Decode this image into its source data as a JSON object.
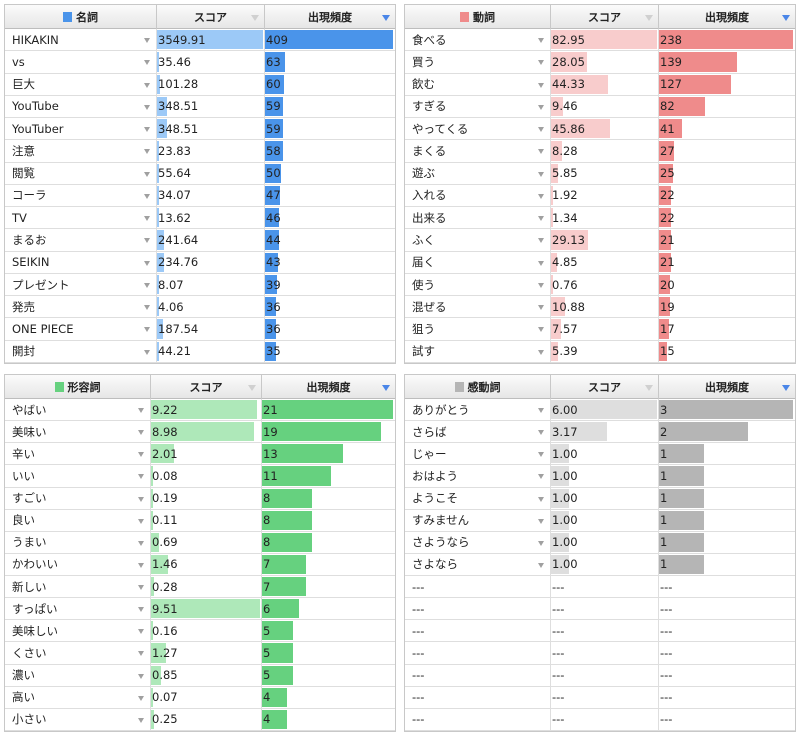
{
  "panels": [
    {
      "id": "noun",
      "title": "名詞",
      "color": "#4a94ea",
      "light": "#9cc9f7",
      "score_label": "スコア",
      "freq_label": "出現頻度",
      "max_score": 3549.91,
      "max_freq": 409,
      "rows": [
        {
          "word": "HIKAKIN",
          "score": "3549.91",
          "freq": "409"
        },
        {
          "word": "vs",
          "score": "35.46",
          "freq": "63"
        },
        {
          "word": "巨大",
          "score": "101.28",
          "freq": "60"
        },
        {
          "word": "YouTube",
          "score": "348.51",
          "freq": "59"
        },
        {
          "word": "YouTuber",
          "score": "348.51",
          "freq": "59"
        },
        {
          "word": "注意",
          "score": "23.83",
          "freq": "58"
        },
        {
          "word": "閲覧",
          "score": "55.64",
          "freq": "50"
        },
        {
          "word": "コーラ",
          "score": "34.07",
          "freq": "47"
        },
        {
          "word": "TV",
          "score": "13.62",
          "freq": "46"
        },
        {
          "word": "まるお",
          "score": "241.64",
          "freq": "44"
        },
        {
          "word": "SEIKIN",
          "score": "234.76",
          "freq": "43"
        },
        {
          "word": "プレゼント",
          "score": "8.07",
          "freq": "39"
        },
        {
          "word": "発売",
          "score": "4.06",
          "freq": "36"
        },
        {
          "word": "ONE PIECE",
          "score": "187.54",
          "freq": "36"
        },
        {
          "word": "開封",
          "score": "44.21",
          "freq": "35"
        }
      ]
    },
    {
      "id": "verb",
      "title": "動詞",
      "color": "#ef8b8b",
      "light": "#f8cccc",
      "score_label": "スコア",
      "freq_label": "出現頻度",
      "max_score": 82.95,
      "max_freq": 238,
      "rows": [
        {
          "word": "食べる",
          "score": "82.95",
          "freq": "238"
        },
        {
          "word": "買う",
          "score": "28.05",
          "freq": "139"
        },
        {
          "word": "飲む",
          "score": "44.33",
          "freq": "127"
        },
        {
          "word": "すぎる",
          "score": "9.46",
          "freq": "82"
        },
        {
          "word": "やってくる",
          "score": "45.86",
          "freq": "41"
        },
        {
          "word": "まくる",
          "score": "8.28",
          "freq": "27"
        },
        {
          "word": "遊ぶ",
          "score": "5.85",
          "freq": "25"
        },
        {
          "word": "入れる",
          "score": "1.92",
          "freq": "22"
        },
        {
          "word": "出来る",
          "score": "1.34",
          "freq": "22"
        },
        {
          "word": "ふく",
          "score": "29.13",
          "freq": "21"
        },
        {
          "word": "届く",
          "score": "4.85",
          "freq": "21"
        },
        {
          "word": "使う",
          "score": "0.76",
          "freq": "20"
        },
        {
          "word": "混ぜる",
          "score": "10.88",
          "freq": "19"
        },
        {
          "word": "狙う",
          "score": "7.57",
          "freq": "17"
        },
        {
          "word": "試す",
          "score": "5.39",
          "freq": "15"
        }
      ]
    },
    {
      "id": "adjective",
      "title": "形容詞",
      "color": "#66d17f",
      "light": "#aee8b9",
      "score_label": "スコア",
      "freq_label": "出現頻度",
      "max_score": 9.51,
      "max_freq": 21,
      "rows": [
        {
          "word": "やばい",
          "score": "9.22",
          "freq": "21"
        },
        {
          "word": "美味い",
          "score": "8.98",
          "freq": "19"
        },
        {
          "word": "辛い",
          "score": "2.01",
          "freq": "13"
        },
        {
          "word": "いい",
          "score": "0.08",
          "freq": "11"
        },
        {
          "word": "すごい",
          "score": "0.19",
          "freq": "8"
        },
        {
          "word": "良い",
          "score": "0.11",
          "freq": "8"
        },
        {
          "word": "うまい",
          "score": "0.69",
          "freq": "8"
        },
        {
          "word": "かわいい",
          "score": "1.46",
          "freq": "7"
        },
        {
          "word": "新しい",
          "score": "0.28",
          "freq": "7"
        },
        {
          "word": "すっぱい",
          "score": "9.51",
          "freq": "6"
        },
        {
          "word": "美味しい",
          "score": "0.16",
          "freq": "5"
        },
        {
          "word": "くさい",
          "score": "1.27",
          "freq": "5"
        },
        {
          "word": "濃い",
          "score": "0.85",
          "freq": "5"
        },
        {
          "word": "高い",
          "score": "0.07",
          "freq": "4"
        },
        {
          "word": "小さい",
          "score": "0.25",
          "freq": "4"
        }
      ]
    },
    {
      "id": "interjection",
      "title": "感動詞",
      "color": "#b5b5b5",
      "light": "#dedede",
      "score_label": "スコア",
      "freq_label": "出現頻度",
      "max_score": 6.0,
      "max_freq": 3,
      "rows": [
        {
          "word": "ありがとう",
          "score": "6.00",
          "freq": "3"
        },
        {
          "word": "さらば",
          "score": "3.17",
          "freq": "2"
        },
        {
          "word": "じゃー",
          "score": "1.00",
          "freq": "1"
        },
        {
          "word": "おはよう",
          "score": "1.00",
          "freq": "1"
        },
        {
          "word": "ようこそ",
          "score": "1.00",
          "freq": "1"
        },
        {
          "word": "すみません",
          "score": "1.00",
          "freq": "1"
        },
        {
          "word": "さようなら",
          "score": "1.00",
          "freq": "1"
        },
        {
          "word": "さよなら",
          "score": "1.00",
          "freq": "1"
        },
        {
          "word": "---",
          "score": "---",
          "freq": "---"
        },
        {
          "word": "---",
          "score": "---",
          "freq": "---"
        },
        {
          "word": "---",
          "score": "---",
          "freq": "---"
        },
        {
          "word": "---",
          "score": "---",
          "freq": "---"
        },
        {
          "word": "---",
          "score": "---",
          "freq": "---"
        },
        {
          "word": "---",
          "score": "---",
          "freq": "---"
        },
        {
          "word": "---",
          "score": "---",
          "freq": "---"
        }
      ]
    }
  ]
}
